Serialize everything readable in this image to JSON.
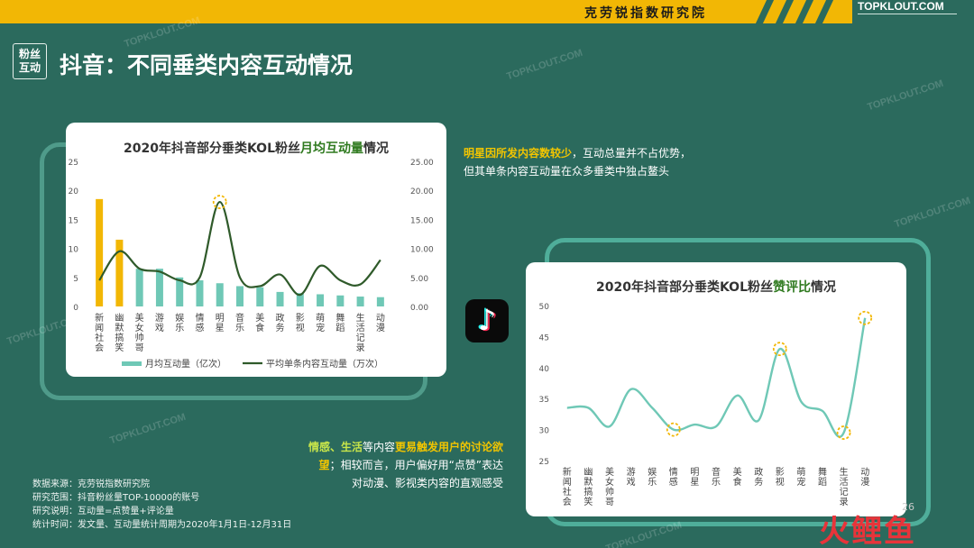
{
  "header": {
    "brand_name": "克劳锐指数研究院",
    "logo": "TOPKLOUT.COM"
  },
  "title": {
    "badge_line1": "粉丝",
    "badge_line2": "互动",
    "text": "抖音：不同垂类内容互动情况"
  },
  "notes": {
    "top_hl": "明星因所发内容数较少",
    "top_rest": "，互动总量并不占优势，",
    "top_line2": "但其单条内容互动量在众多垂类中独占鳌头",
    "mid_hl1": "情感、生活",
    "mid_plain1": "等内容",
    "mid_hl2": "更易触发用户的讨论欲望",
    "mid_plain2": "；相较而言，用户偏好用“点赞”表达",
    "mid_line3": "对动漫、影视类内容的直观感受"
  },
  "source": {
    "line1": "数据来源：克劳锐指数研究院",
    "line2": "研究范围：抖音粉丝量TOP-10000的账号",
    "line3": "研究说明：互动量=点赞量+评论量",
    "line4": "统计时间：发文量、互动量统计周期为2020年1月1日-12月31日"
  },
  "icons": {
    "app": "tiktok-icon",
    "app_glyph": "♪"
  },
  "footer": {
    "fish_logo": "火鲤鱼",
    "page": "26"
  },
  "watermark": "TOPKLOUT.COM",
  "chart_data": [
    {
      "type": "bar",
      "title_parts": [
        "2020年抖音部分垂类KOL粉丝",
        "月均互动量",
        "情况"
      ],
      "categories": [
        "新闻社会",
        "幽默搞笑",
        "美女帅哥",
        "游戏",
        "娱乐",
        "情感",
        "明星",
        "音乐",
        "美食",
        "政务",
        "影视",
        "萌宠",
        "舞蹈",
        "生活记录",
        "动漫"
      ],
      "y_ticks_left": [
        "0",
        "5",
        "10",
        "15",
        "20",
        "25"
      ],
      "y_ticks_right": [
        "0.00",
        "5.00",
        "10.00",
        "15.00",
        "20.00",
        "25.00"
      ],
      "ylim_left": [
        0,
        25
      ],
      "ylim_right": [
        0,
        25
      ],
      "series": [
        {
          "name": "月均互动量（亿次）",
          "kind": "bar",
          "axis": "left",
          "values": [
            18.5,
            11.5,
            6.5,
            6.5,
            5.0,
            4.5,
            4.0,
            3.5,
            3.3,
            2.5,
            2.3,
            2.1,
            1.9,
            1.7,
            1.6
          ],
          "highlight": [
            true,
            true,
            false,
            false,
            false,
            false,
            false,
            false,
            false,
            false,
            false,
            false,
            false,
            false,
            false
          ]
        },
        {
          "name": "平均单条内容互动量（万次）",
          "kind": "line",
          "axis": "right",
          "values": [
            4.5,
            9.5,
            6.5,
            6.0,
            4.5,
            5.0,
            18.0,
            5.0,
            3.5,
            5.5,
            2.0,
            7.0,
            4.5,
            3.8,
            8.0
          ]
        }
      ],
      "highlight_points": [
        6
      ],
      "colors": {
        "bar": "#6fc8b6",
        "bar_highlight": "#f2b705",
        "line": "#2f5a2a",
        "marker": "#f2b705"
      }
    },
    {
      "type": "line",
      "title_parts": [
        "2020年抖音部分垂类KOL粉丝",
        "赞评比",
        "情况"
      ],
      "categories": [
        "新闻社会",
        "幽默搞笑",
        "美女帅哥",
        "游戏",
        "娱乐",
        "情感",
        "明星",
        "音乐",
        "美食",
        "政务",
        "影视",
        "萌宠",
        "舞蹈",
        "生活记录",
        "动漫"
      ],
      "y_ticks": [
        "25",
        "30",
        "35",
        "40",
        "45",
        "50"
      ],
      "ylim": [
        25,
        50
      ],
      "series": [
        {
          "name": "赞评比",
          "values": [
            33.5,
            33.5,
            30.5,
            36.5,
            33.5,
            30.0,
            30.8,
            30.5,
            35.5,
            31.5,
            43.0,
            34.5,
            33.0,
            29.5,
            48.0
          ]
        }
      ],
      "highlight_points": [
        5,
        10,
        13,
        14
      ],
      "colors": {
        "line": "#6fc8b6",
        "marker": "#f2b705"
      }
    }
  ]
}
